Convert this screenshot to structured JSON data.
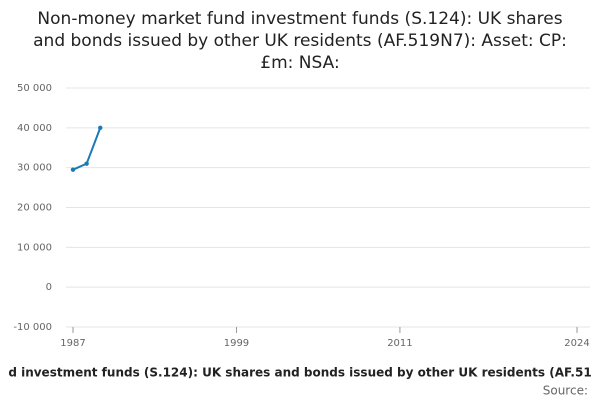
{
  "chart_data": {
    "type": "line",
    "title": "Non-money market fund investment funds (S.124): UK shares and bonds issued by other UK residents (AF.519N7): Asset: CP: £m: NSA:",
    "x": [
      1987,
      1988,
      1989
    ],
    "series": [
      {
        "name": "d investment funds (S.124): UK shares and bonds issued by other UK residents (AF.51",
        "color": "#1a7ab5",
        "values": [
          29500,
          31000,
          40000
        ]
      }
    ],
    "xlim": [
      1987,
      2024
    ],
    "xticks": [
      1987,
      1999,
      2011,
      2024
    ],
    "ylim": [
      -10000,
      50000
    ],
    "yticks": [
      {
        "value": -10000,
        "label": "-10 000"
      },
      0,
      {
        "value": 10000,
        "label": "10 000"
      },
      {
        "value": 20000,
        "label": "20 000"
      },
      {
        "value": 30000,
        "label": "30 000"
      },
      {
        "value": 40000,
        "label": "40 000"
      },
      {
        "value": 50000,
        "label": "50 000"
      }
    ],
    "grid": true,
    "source": "Source:"
  }
}
